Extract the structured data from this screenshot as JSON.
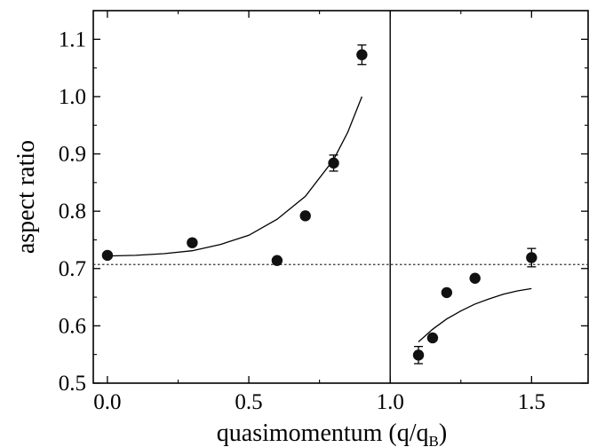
{
  "chart_data": {
    "type": "scatter",
    "xlabel": "quasimomentum (q/q",
    "xlabel_sub": "B",
    "xlabel_close": ")",
    "ylabel": "aspect ratio",
    "xlim": [
      -0.05,
      1.7
    ],
    "ylim": [
      0.5,
      1.15
    ],
    "x_ticks": [
      0.0,
      0.5,
      1.0,
      1.5
    ],
    "x_tick_labels": [
      "0.0",
      "0.5",
      "1.0",
      "1.5"
    ],
    "y_ticks": [
      0.5,
      0.6,
      0.7,
      0.8,
      0.9,
      1.0,
      1.1
    ],
    "y_tick_labels": [
      "0.5",
      "0.6",
      "0.7",
      "0.8",
      "0.9",
      "1.0",
      "1.1"
    ],
    "grid": false,
    "series": [
      {
        "values": [
          {
            "x": 0.0,
            "y": 0.723,
            "err": 0
          },
          {
            "x": 0.3,
            "y": 0.745,
            "err": 0
          },
          {
            "x": 0.6,
            "y": 0.714,
            "err": 0
          },
          {
            "x": 0.7,
            "y": 0.792,
            "err": 0
          },
          {
            "x": 0.8,
            "y": 0.884,
            "err": 0.014
          },
          {
            "x": 0.9,
            "y": 1.073,
            "err": 0.017
          },
          {
            "x": 1.1,
            "y": 0.549,
            "err": 0.015
          },
          {
            "x": 1.15,
            "y": 0.579,
            "err": 0
          },
          {
            "x": 1.2,
            "y": 0.658,
            "err": 0
          },
          {
            "x": 1.3,
            "y": 0.683,
            "err": 0
          },
          {
            "x": 1.5,
            "y": 0.719,
            "err": 0.016
          }
        ]
      }
    ],
    "fit_curves": [
      {
        "x": [
          0.0,
          0.1,
          0.2,
          0.3,
          0.4,
          0.5,
          0.6,
          0.7,
          0.8,
          0.85,
          0.9
        ],
        "y": [
          0.722,
          0.723,
          0.726,
          0.731,
          0.742,
          0.758,
          0.786,
          0.826,
          0.89,
          0.938,
          1.0
        ]
      },
      {
        "x": [
          1.1,
          1.15,
          1.2,
          1.25,
          1.3,
          1.35,
          1.4,
          1.45,
          1.5
        ],
        "y": [
          0.572,
          0.594,
          0.612,
          0.626,
          0.638,
          0.647,
          0.655,
          0.661,
          0.665
        ]
      }
    ],
    "reference_lines": {
      "horizontal_dotted_y": 0.707,
      "vertical_solid_x": 1.0
    }
  }
}
